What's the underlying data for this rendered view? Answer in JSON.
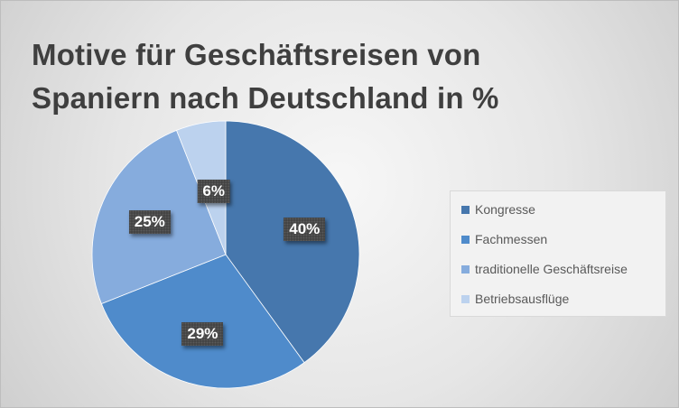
{
  "chart_data": {
    "type": "pie",
    "title": "Motive für Geschäftsreisen von Spaniern nach Deutschland in %",
    "slices": [
      {
        "label": "Kongresse",
        "value": 40,
        "display": "40%",
        "color": "#4677ad"
      },
      {
        "label": "Fachmessen",
        "value": 29,
        "display": "29%",
        "color": "#4f8bcb"
      },
      {
        "label": "traditionelle Geschäftsreise",
        "value": 25,
        "display": "25%",
        "color": "#86acdd"
      },
      {
        "label": "Betriebsausflüge",
        "value": 6,
        "display": "6%",
        "color": "#bcd2ee"
      }
    ],
    "legend_position": "right"
  }
}
